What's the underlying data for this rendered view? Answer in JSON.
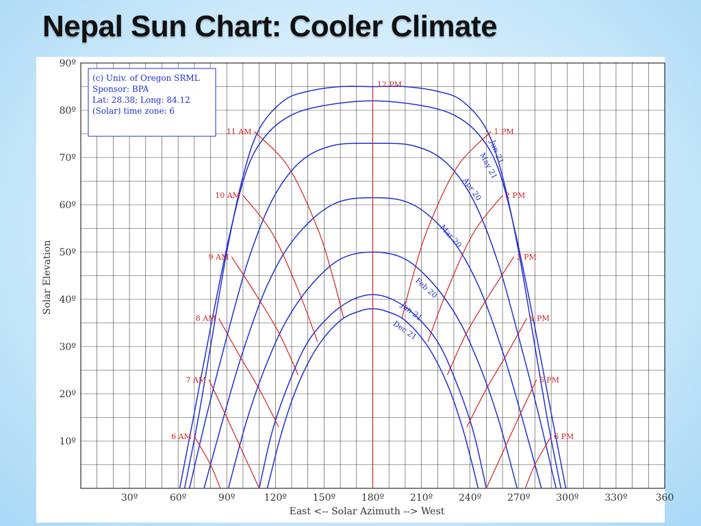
{
  "slide": {
    "title": "Nepal Sun Chart: Cooler Climate"
  },
  "chart_data": {
    "type": "line",
    "title": "",
    "xlabel": "East <-- Solar Azimuth --> West",
    "ylabel": "Solar Elevation",
    "xlim": [
      0,
      360
    ],
    "ylim": [
      0,
      90
    ],
    "x_ticks": [
      30,
      60,
      90,
      120,
      150,
      180,
      210,
      240,
      270,
      300,
      330,
      360
    ],
    "x_tick_labels": [
      "30º",
      "60º",
      "90º",
      "120º",
      "150º",
      "180º",
      "210º",
      "240º",
      "270º",
      "300º",
      "330º",
      "360"
    ],
    "y_ticks": [
      10,
      20,
      30,
      40,
      50,
      60,
      70,
      80,
      90
    ],
    "y_tick_labels": [
      "10º",
      "20º",
      "30º",
      "40º",
      "50º",
      "60º",
      "70º",
      "80º",
      "90º"
    ],
    "grid": true,
    "info_box": [
      "(c) Univ. of Oregon SRML",
      "Sponsor: BPA",
      "Lat: 28.38; Long: 84.12",
      "(Solar) time zone: 6"
    ],
    "date_series": [
      {
        "name": "Jun 21",
        "color": "#1f2fd0",
        "points": [
          [
            64,
            0
          ],
          [
            72,
            14
          ],
          [
            80,
            30
          ],
          [
            90,
            50
          ],
          [
            100,
            66
          ],
          [
            110,
            76
          ],
          [
            125,
            82
          ],
          [
            140,
            84
          ],
          [
            160,
            85
          ],
          [
            180,
            85
          ],
          [
            200,
            85
          ],
          [
            220,
            84
          ],
          [
            235,
            82
          ],
          [
            250,
            76
          ],
          [
            260,
            66
          ],
          [
            270,
            50
          ],
          [
            280,
            30
          ],
          [
            288,
            14
          ],
          [
            296,
            0
          ]
        ]
      },
      {
        "name": "May 21",
        "color": "#1f2fd0",
        "points": [
          [
            61,
            0
          ],
          [
            70,
            16
          ],
          [
            80,
            34
          ],
          [
            92,
            54
          ],
          [
            103,
            68
          ],
          [
            115,
            75
          ],
          [
            130,
            79
          ],
          [
            150,
            81
          ],
          [
            180,
            82
          ],
          [
            210,
            81
          ],
          [
            230,
            79
          ],
          [
            245,
            75
          ],
          [
            257,
            68
          ],
          [
            268,
            54
          ],
          [
            280,
            34
          ],
          [
            290,
            16
          ],
          [
            299,
            0
          ]
        ]
      },
      {
        "name": "Apr 20",
        "color": "#1f2fd0",
        "points": [
          [
            67,
            0
          ],
          [
            78,
            16
          ],
          [
            90,
            32
          ],
          [
            103,
            48
          ],
          [
            118,
            61
          ],
          [
            135,
            69
          ],
          [
            155,
            72.5
          ],
          [
            180,
            73
          ],
          [
            205,
            72.5
          ],
          [
            225,
            69
          ],
          [
            242,
            61
          ],
          [
            257,
            48
          ],
          [
            270,
            32
          ],
          [
            282,
            16
          ],
          [
            293,
            0
          ]
        ]
      },
      {
        "name": "Mar 20",
        "color": "#1f2fd0",
        "points": [
          [
            76,
            0
          ],
          [
            88,
            15
          ],
          [
            100,
            29
          ],
          [
            115,
            43
          ],
          [
            132,
            53
          ],
          [
            155,
            60
          ],
          [
            180,
            61.5
          ],
          [
            205,
            60
          ],
          [
            228,
            53
          ],
          [
            245,
            43
          ],
          [
            260,
            29
          ],
          [
            272,
            15
          ],
          [
            284,
            0
          ]
        ]
      },
      {
        "name": "Feb 20",
        "color": "#1f2fd0",
        "points": [
          [
            91,
            0
          ],
          [
            102,
            14
          ],
          [
            113,
            25
          ],
          [
            126,
            35
          ],
          [
            142,
            43
          ],
          [
            160,
            48.5
          ],
          [
            180,
            50
          ],
          [
            200,
            48.5
          ],
          [
            218,
            43
          ],
          [
            234,
            35
          ],
          [
            247,
            25
          ],
          [
            258,
            14
          ],
          [
            269,
            0
          ]
        ]
      },
      {
        "name": "Jan 21",
        "color": "#1f2fd0",
        "points": [
          [
            110,
            0
          ],
          [
            118,
            12
          ],
          [
            128,
            22
          ],
          [
            140,
            31
          ],
          [
            155,
            37
          ],
          [
            168,
            40
          ],
          [
            180,
            41
          ],
          [
            192,
            40
          ],
          [
            205,
            37
          ],
          [
            220,
            31
          ],
          [
            232,
            22
          ],
          [
            242,
            12
          ],
          [
            250,
            0
          ]
        ]
      },
      {
        "name": "Dec 21",
        "color": "#1f2fd0",
        "points": [
          [
            115,
            0
          ],
          [
            124,
            12
          ],
          [
            134,
            22
          ],
          [
            146,
            30
          ],
          [
            160,
            35.5
          ],
          [
            172,
            37.5
          ],
          [
            180,
            38
          ],
          [
            188,
            37.5
          ],
          [
            200,
            35.5
          ],
          [
            214,
            30
          ],
          [
            226,
            22
          ],
          [
            236,
            12
          ],
          [
            245,
            0
          ]
        ]
      }
    ],
    "hour_series": [
      {
        "name": "6 AM",
        "color": "#d42020",
        "points": [
          [
            70,
            11
          ],
          [
            80,
            5
          ],
          [
            86,
            0
          ]
        ]
      },
      {
        "name": "7 AM",
        "color": "#d42020",
        "points": [
          [
            79,
            23
          ],
          [
            90,
            15
          ],
          [
            102,
            6
          ],
          [
            110,
            0
          ]
        ]
      },
      {
        "name": "8 AM",
        "color": "#d42020",
        "points": [
          [
            85,
            36
          ],
          [
            98,
            28
          ],
          [
            110,
            21
          ],
          [
            122,
            13
          ]
        ]
      },
      {
        "name": "9 AM",
        "color": "#d42020",
        "points": [
          [
            93,
            49
          ],
          [
            108,
            41
          ],
          [
            122,
            33
          ],
          [
            134,
            24
          ]
        ]
      },
      {
        "name": "10 AM",
        "color": "#d42020",
        "points": [
          [
            100,
            62
          ],
          [
            118,
            54
          ],
          [
            134,
            42
          ],
          [
            146,
            31
          ]
        ]
      },
      {
        "name": "11 AM",
        "color": "#d42020",
        "points": [
          [
            107,
            75.5
          ],
          [
            128,
            68
          ],
          [
            146,
            55
          ],
          [
            156,
            44
          ],
          [
            162,
            36
          ]
        ]
      },
      {
        "name": "12 PM",
        "color": "#d42020",
        "points": [
          [
            180,
            85
          ],
          [
            180,
            0
          ]
        ]
      },
      {
        "name": "1 PM",
        "color": "#d42020",
        "points": [
          [
            253,
            75.5
          ],
          [
            232,
            68
          ],
          [
            214,
            55
          ],
          [
            204,
            44
          ],
          [
            198,
            36
          ]
        ]
      },
      {
        "name": "2 PM",
        "color": "#d42020",
        "points": [
          [
            260,
            62
          ],
          [
            242,
            54
          ],
          [
            226,
            42
          ],
          [
            214,
            31
          ]
        ]
      },
      {
        "name": "3 PM",
        "color": "#d42020",
        "points": [
          [
            267,
            49
          ],
          [
            252,
            41
          ],
          [
            238,
            33
          ],
          [
            226,
            24
          ]
        ]
      },
      {
        "name": "4 PM",
        "color": "#d42020",
        "points": [
          [
            275,
            36
          ],
          [
            262,
            28
          ],
          [
            250,
            21
          ],
          [
            238,
            13
          ]
        ]
      },
      {
        "name": "5 PM",
        "color": "#d42020",
        "points": [
          [
            281,
            23
          ],
          [
            270,
            15
          ],
          [
            258,
            6
          ],
          [
            250,
            0
          ]
        ]
      },
      {
        "name": "6 PM",
        "color": "#d42020",
        "points": [
          [
            290,
            11
          ],
          [
            280,
            5
          ],
          [
            274,
            0
          ]
        ]
      }
    ],
    "hour_labels": [
      {
        "text": "6 AM",
        "x": 70,
        "y": 11,
        "anchor": "end"
      },
      {
        "text": "7 AM",
        "x": 79,
        "y": 23,
        "anchor": "end"
      },
      {
        "text": "8 AM",
        "x": 85,
        "y": 36,
        "anchor": "end"
      },
      {
        "text": "9 AM",
        "x": 93,
        "y": 49,
        "anchor": "end"
      },
      {
        "text": "10 AM",
        "x": 100,
        "y": 62,
        "anchor": "end"
      },
      {
        "text": "11 AM",
        "x": 107,
        "y": 75.5,
        "anchor": "end"
      },
      {
        "text": "12 PM",
        "x": 181,
        "y": 85.5,
        "anchor": "start"
      },
      {
        "text": "1 PM",
        "x": 253,
        "y": 75.5,
        "anchor": "start"
      },
      {
        "text": "2 PM",
        "x": 260,
        "y": 62,
        "anchor": "start"
      },
      {
        "text": "3 PM",
        "x": 267,
        "y": 49,
        "anchor": "start"
      },
      {
        "text": "4 PM",
        "x": 275,
        "y": 36,
        "anchor": "start"
      },
      {
        "text": "5 PM",
        "x": 281,
        "y": 23,
        "anchor": "start"
      },
      {
        "text": "6 PM",
        "x": 290,
        "y": 11,
        "anchor": "start"
      }
    ],
    "date_labels": [
      {
        "text": "Jun 21",
        "x": 255,
        "y": 71,
        "rotation": 68
      },
      {
        "text": "May 21",
        "x": 250,
        "y": 68,
        "rotation": 62
      },
      {
        "text": "Apr 20",
        "x": 240,
        "y": 63,
        "rotation": 55
      },
      {
        "text": "Mar 20",
        "x": 227,
        "y": 53,
        "rotation": 48
      },
      {
        "text": "Feb 20",
        "x": 212,
        "y": 42,
        "rotation": 42
      },
      {
        "text": "Jan 21",
        "x": 203,
        "y": 37,
        "rotation": 38
      },
      {
        "text": "Dec 21",
        "x": 199,
        "y": 33,
        "rotation": 35
      }
    ],
    "colors": {
      "date_lines": "#1f2fd0",
      "hour_lines": "#d42020",
      "grid": "#000000"
    }
  }
}
